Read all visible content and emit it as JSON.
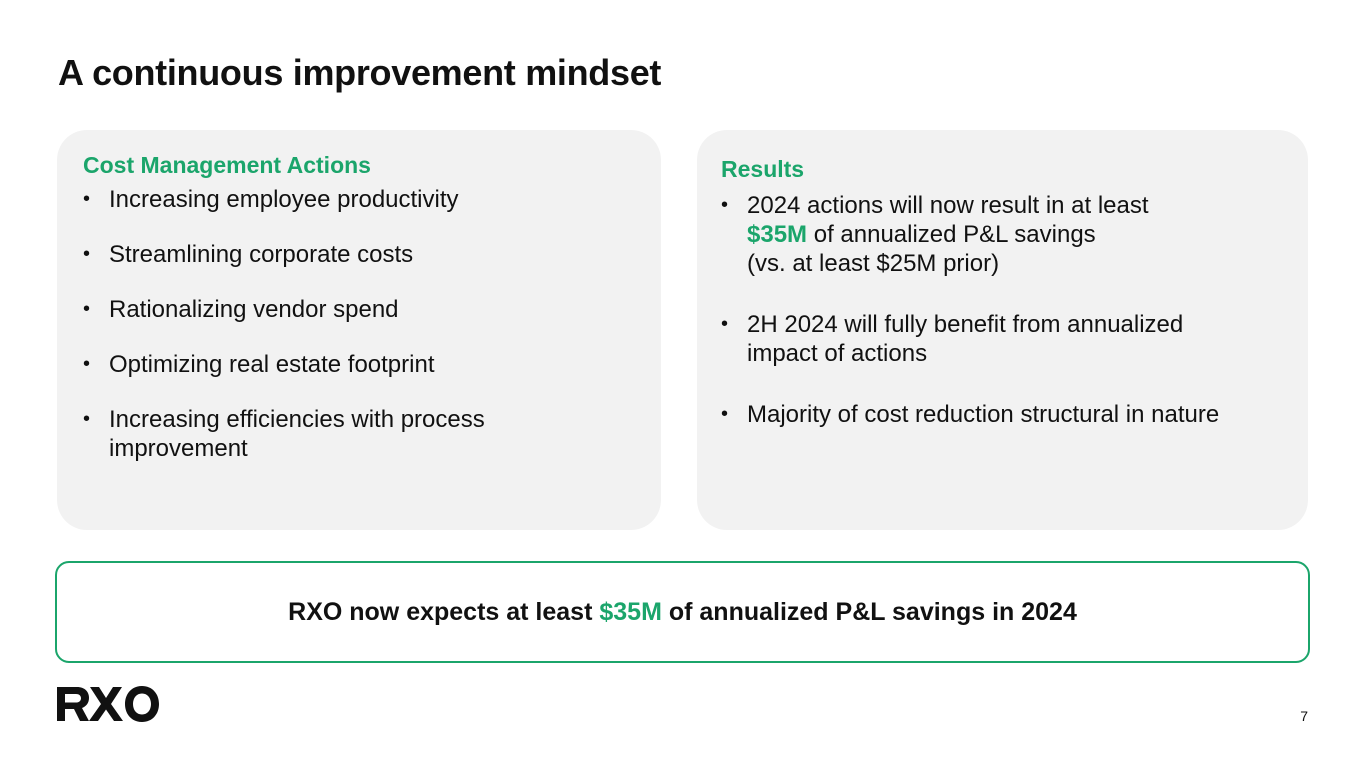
{
  "title": "A continuous improvement mindset",
  "left_card": {
    "heading": "Cost Management Actions",
    "bullets": [
      "Increasing employee productivity",
      "Streamlining corporate costs",
      "Rationalizing vendor spend",
      "Optimizing real estate footprint",
      "Increasing efficiencies with process improvement"
    ]
  },
  "right_card": {
    "heading": "Results",
    "bullet1": {
      "line1": "2024 actions will now result in at least",
      "highlight": "$35M",
      "line2_rest": " of annualized P&L savings",
      "line3": "(vs. at least $25M prior)"
    },
    "bullet2": "2H 2024 will fully benefit from annualized impact of actions",
    "bullet3": "Majority of cost reduction structural in nature"
  },
  "callout": {
    "before": "RXO now expects at least ",
    "highlight": "$35M",
    "after": " of annualized P&L savings in 2024"
  },
  "logo_text": "RXO",
  "page_number": "7",
  "colors": {
    "accent": "#1ba56b",
    "card_bg": "#f2f2f2",
    "text": "#111111"
  }
}
